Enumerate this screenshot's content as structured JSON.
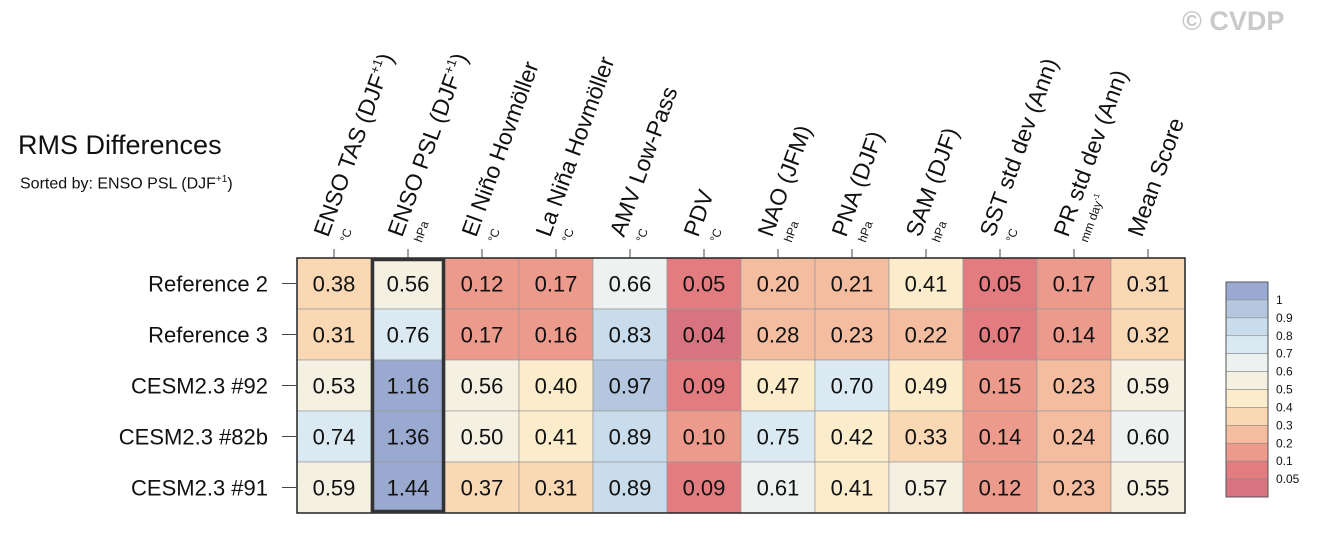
{
  "watermark": "© CVDP",
  "chart_data": {
    "type": "heatmap",
    "title": "RMS Differences",
    "subtitle": {
      "prefix": "Sorted by: ENSO PSL (DJF",
      "superscript": "+1",
      "suffix": ")"
    },
    "columns": [
      {
        "label": "ENSO TAS (DJF",
        "sup": "+1",
        "after": ")",
        "unit": "°C"
      },
      {
        "label": "ENSO PSL (DJF",
        "sup": "+1",
        "after": ")",
        "unit": "hPa"
      },
      {
        "label": "El Niño Hovmöller",
        "sup": "",
        "after": "",
        "unit": "°C"
      },
      {
        "label": "La Niña Hovmöller",
        "sup": "",
        "after": "",
        "unit": "°C"
      },
      {
        "label": "AMV Low-Pass",
        "sup": "",
        "after": "",
        "unit": "°C"
      },
      {
        "label": "PDV",
        "sup": "",
        "after": "",
        "unit": "°C"
      },
      {
        "label": "NAO (JFM)",
        "sup": "",
        "after": "",
        "unit": "hPa"
      },
      {
        "label": "PNA (DJF)",
        "sup": "",
        "after": "",
        "unit": "hPa"
      },
      {
        "label": "SAM (DJF)",
        "sup": "",
        "after": "",
        "unit": "hPa"
      },
      {
        "label": "SST std dev (Ann)",
        "sup": "",
        "after": "",
        "unit": "°C"
      },
      {
        "label": "PR std dev (Ann)",
        "sup": "",
        "after": "",
        "unit": "mm day",
        "unit_sup": "-1"
      },
      {
        "label": "Mean Score",
        "sup": "",
        "after": "",
        "unit": ""
      }
    ],
    "rows": [
      "Reference 2",
      "Reference 3",
      "CESM2.3 #92",
      "CESM2.3 #82b",
      "CESM2.3 #91"
    ],
    "values": [
      [
        0.38,
        0.56,
        0.12,
        0.17,
        0.66,
        0.05,
        0.2,
        0.21,
        0.41,
        0.05,
        0.17,
        0.31
      ],
      [
        0.31,
        0.76,
        0.17,
        0.16,
        0.83,
        0.04,
        0.28,
        0.23,
        0.22,
        0.07,
        0.14,
        0.32
      ],
      [
        0.53,
        1.16,
        0.56,
        0.4,
        0.97,
        0.09,
        0.47,
        0.7,
        0.49,
        0.15,
        0.23,
        0.59
      ],
      [
        0.74,
        1.36,
        0.5,
        0.41,
        0.89,
        0.1,
        0.75,
        0.42,
        0.33,
        0.14,
        0.24,
        0.6
      ],
      [
        0.59,
        1.44,
        0.37,
        0.31,
        0.89,
        0.09,
        0.61,
        0.41,
        0.57,
        0.12,
        0.23,
        0.55
      ]
    ],
    "highlighted_column": 1,
    "colorbar": {
      "labels": [
        "1",
        "0.9",
        "0.8",
        "0.7",
        "0.6",
        "0.5",
        "0.4",
        "0.3",
        "0.2",
        "0.1",
        "0.05"
      ],
      "colors": [
        "#9aa9cf",
        "#b4c7df",
        "#c9dceb",
        "#dbeaf2",
        "#edf2f0",
        "#f4f1e3",
        "#fbeccb",
        "#f9d8b3",
        "#f5bd9f",
        "#ec9a8c",
        "#e27c80",
        "#d8747f"
      ]
    },
    "legend_position": "right"
  }
}
